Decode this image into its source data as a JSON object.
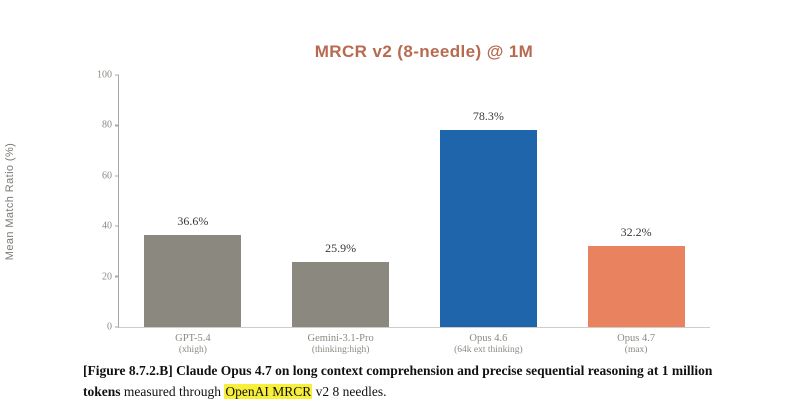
{
  "chart_data": {
    "type": "bar",
    "title": "MRCR v2 (8-needle) @ 1M",
    "ylabel": "Mean Match Ratio (%)",
    "xlabel": "",
    "ylim": [
      0,
      100
    ],
    "yticks": [
      0,
      20,
      40,
      60,
      80,
      100
    ],
    "grid": false,
    "legend": "none",
    "categories": [
      "GPT-5.4",
      "Gemini-3.1-Pro",
      "Opus 4.6",
      "Opus 4.7"
    ],
    "category_subs": [
      "(xhigh)",
      "(thinking:high)",
      "(64k ext thinking)",
      "(max)"
    ],
    "values": [
      36.6,
      25.9,
      78.3,
      32.2
    ],
    "value_labels": [
      "36.6%",
      "25.9%",
      "78.3%",
      "32.2%"
    ],
    "bar_colors": [
      "#8b8880",
      "#8b8880",
      "#1e65ab",
      "#e9825f"
    ],
    "title_color": "#b76a50",
    "axis_color": "#a9a7a1"
  },
  "caption": {
    "bold_part": "[Figure 8.7.2.B] Claude Opus 4.7 on long context comprehension and precise sequential reasoning at 1 million tokens",
    "normal_part_1": " measured through ",
    "highlight_part": "OpenAI MRCR",
    "normal_part_2": " v2 8 needles.",
    "highlight_color": "#f7ef3a"
  }
}
